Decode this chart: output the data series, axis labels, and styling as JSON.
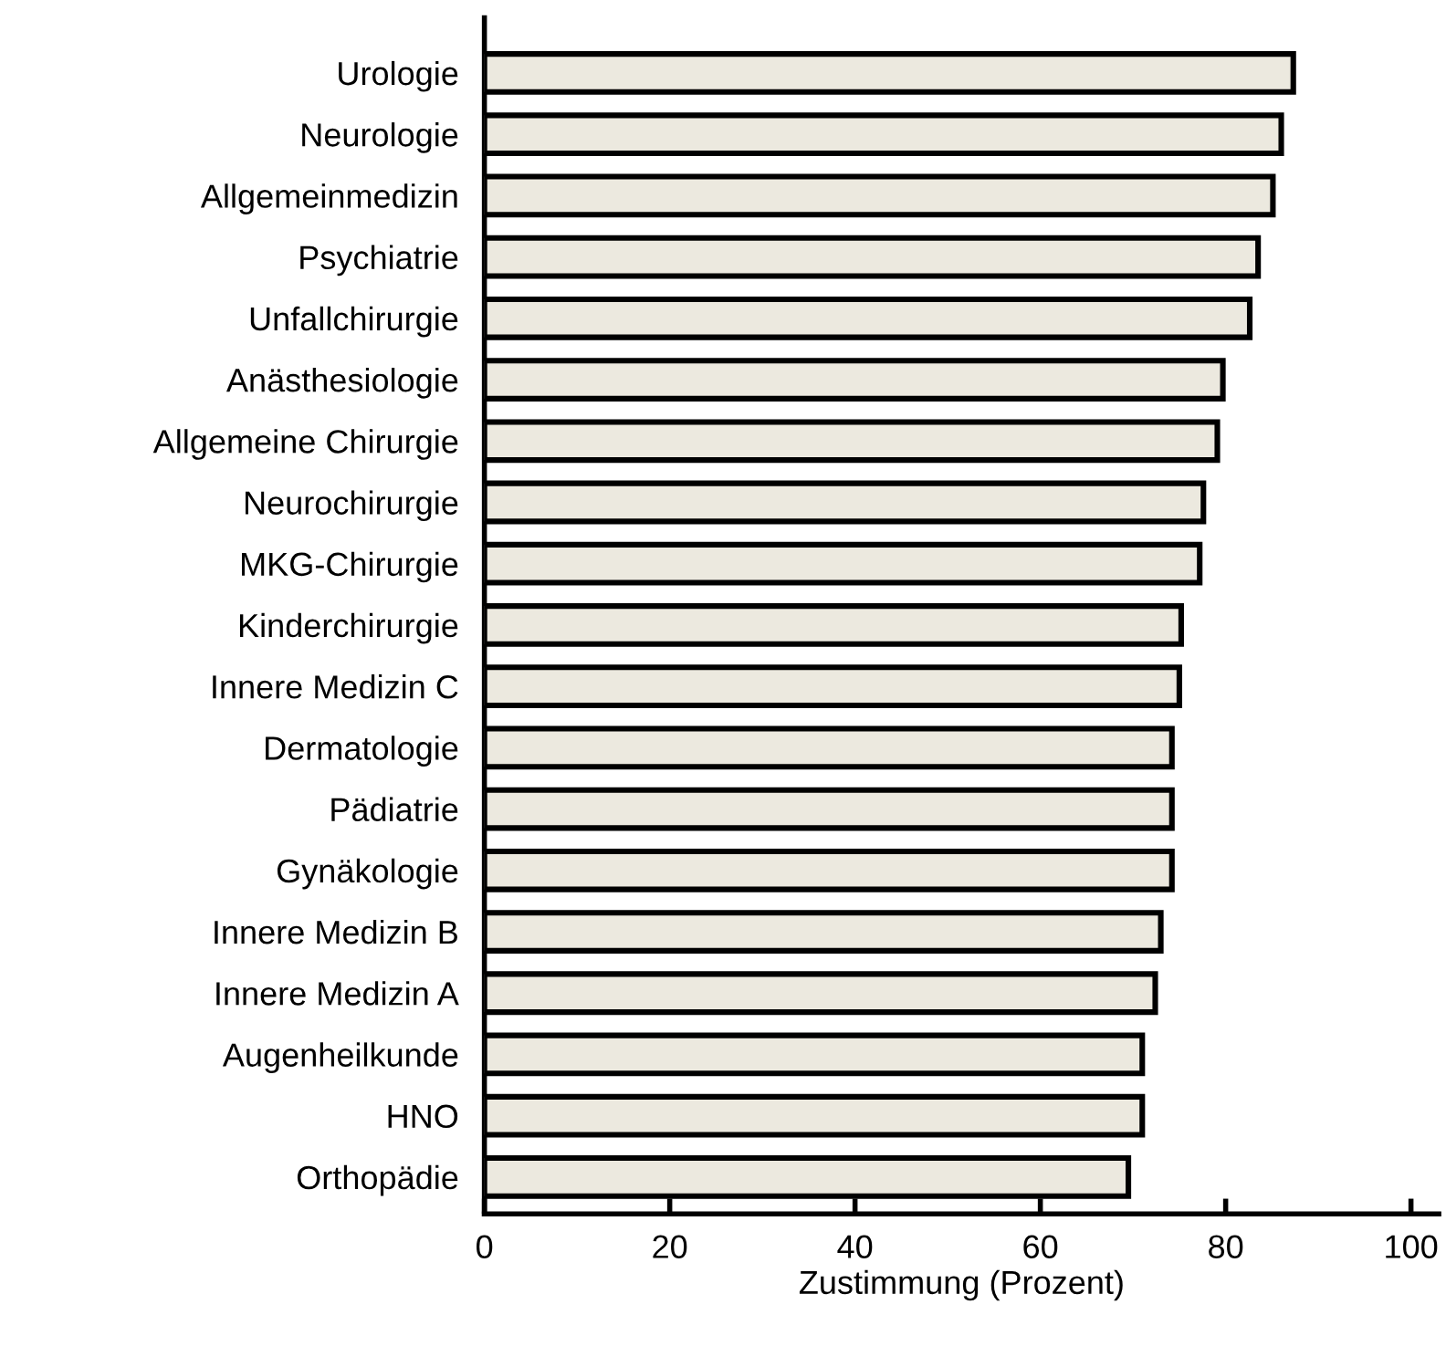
{
  "chart_data": {
    "type": "bar",
    "orientation": "horizontal",
    "xlabel": "Zustimmung (Prozent)",
    "categories": [
      "Urologie",
      "Neurologie",
      "Allgemeinmedizin",
      "Psychiatrie",
      "Unfallchirurgie",
      "Anästhesiologie",
      "Allgemeine Chirurgie",
      "Neurochirurgie",
      "MKG-Chirurgie",
      "Kinderchirurgie",
      "Innere Medizin C",
      "Dermatologie",
      "Pädiatrie",
      "Gynäkologie",
      "Innere Medizin B",
      "Innere Medizin A",
      "Augenheilkunde",
      "HNO",
      "Orthopädie"
    ],
    "values": [
      87.3,
      86.0,
      85.1,
      83.5,
      82.6,
      79.7,
      79.1,
      77.6,
      77.2,
      75.2,
      75.0,
      74.2,
      74.2,
      74.2,
      73.0,
      72.4,
      71.0,
      71.0,
      69.5
    ],
    "color": "#ece9df",
    "xlim": [
      0,
      103
    ],
    "xticks": [
      0,
      20,
      40,
      60,
      80,
      100
    ],
    "grid": false,
    "legend": false
  }
}
